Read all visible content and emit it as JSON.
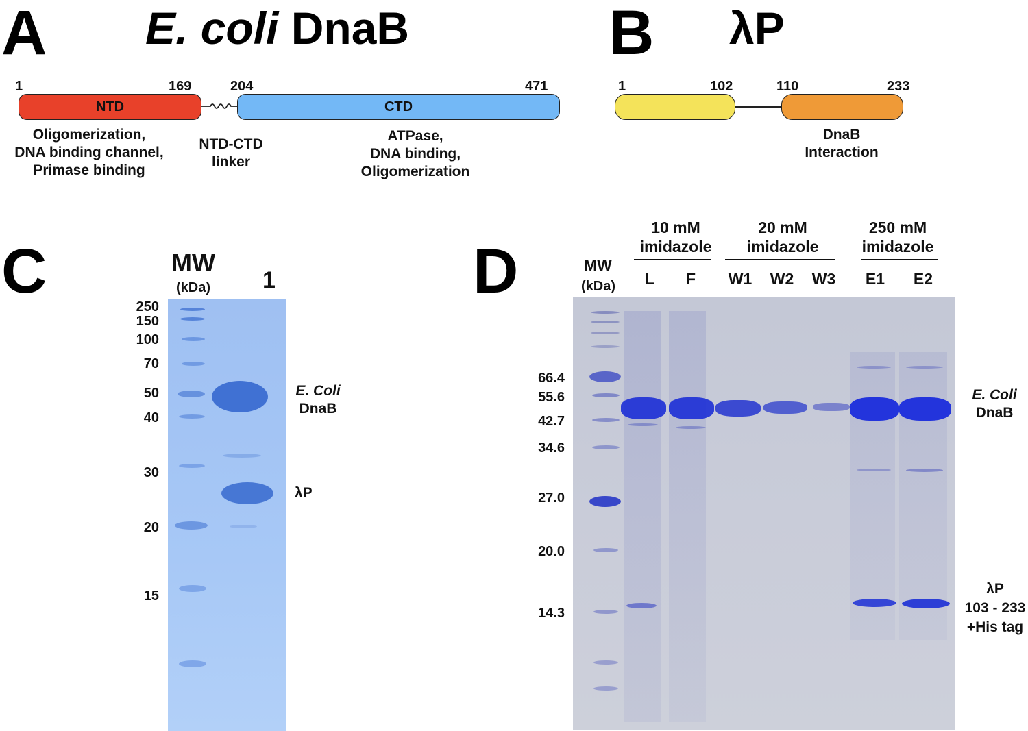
{
  "panelA": {
    "letter": "A",
    "title_italic": "E. coli",
    "title_rest": " DnaB",
    "positions": [
      "1",
      "169",
      "204",
      "471"
    ],
    "domains": [
      {
        "label": "NTD",
        "color": "#e8412a"
      },
      {
        "label": "CTD",
        "color": "#73b8f6"
      }
    ],
    "descriptions": {
      "ntd": [
        "Oligomerization,",
        "DNA binding channel,",
        "Primase binding"
      ],
      "linker": [
        "NTD-CTD",
        "linker"
      ],
      "ctd": [
        "ATPase,",
        "DNA binding,",
        "Oligomerization"
      ]
    }
  },
  "panelB": {
    "letter": "B",
    "title": "λP",
    "positions": [
      "1",
      "102",
      "110",
      "233"
    ],
    "domains": [
      {
        "color": "#f4e35a"
      },
      {
        "color": "#ef9a37"
      }
    ],
    "description": [
      "DnaB",
      "Interaction"
    ]
  },
  "panelC": {
    "letter": "C",
    "mw_label": "MW",
    "kda_label": "(kDa)",
    "lane_label": "1",
    "markers": [
      "250",
      "150",
      "100",
      "70",
      "50",
      "40",
      "30",
      "20",
      "15"
    ],
    "band_labels": {
      "dnab_italic": "E. Coli",
      "dnab": "DnaB",
      "lp": "λP"
    }
  },
  "panelD": {
    "letter": "D",
    "mw_label": "MW",
    "kda_label": "(kDa)",
    "groups": [
      {
        "line1": "10 mM",
        "line2": "imidazole"
      },
      {
        "line1": "20 mM",
        "line2": "imidazole"
      },
      {
        "line1": "250 mM",
        "line2": "imidazole"
      }
    ],
    "lanes": [
      "L",
      "F",
      "W1",
      "W2",
      "W3",
      "E1",
      "E2"
    ],
    "markers": [
      "66.4",
      "55.6",
      "42.7",
      "34.6",
      "27.0",
      "20.0",
      "14.3"
    ],
    "band_labels": {
      "dnab_italic": "E. Coli",
      "dnab": "DnaB",
      "lp1": "λP",
      "lp2": "103 - 233",
      "lp3": "+His tag"
    }
  }
}
